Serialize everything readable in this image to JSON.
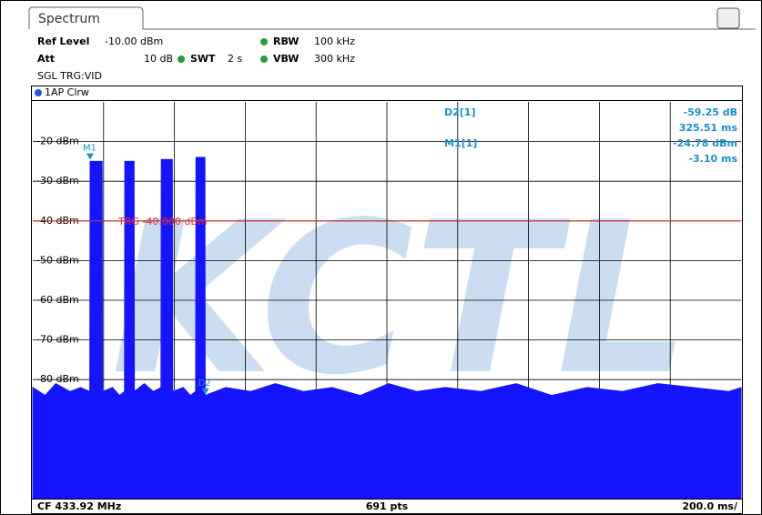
{
  "tab": "Spectrum",
  "settings": {
    "ref_level_label": "Ref Level",
    "ref_level": "-10.00 dBm",
    "rbw_label": "RBW",
    "rbw": "100 kHz",
    "att_label": "Att",
    "att": "10 dB",
    "swt_label": "SWT",
    "swt": "2 s",
    "vbw_label": "VBW",
    "vbw": "300 kHz",
    "trigger": "SGL TRG:VID"
  },
  "trace_label": "1AP Clrw",
  "watermark": "KCTL",
  "marker_table": [
    [
      "D2[1]",
      "-59.25 dB",
      "325.51 ms"
    ],
    [
      "M1[1]",
      "-24.78 dBm",
      "-3.10 ms"
    ]
  ],
  "footer": {
    "left": "CF 433.92 MHz",
    "center": "691 pts",
    "right": "200.0 ms/"
  },
  "chart_data": {
    "type": "line",
    "xlim": [
      -165,
      1835
    ],
    "ylim": [
      -110,
      -10
    ],
    "xticks": [
      35,
      235,
      435,
      635,
      835,
      1035,
      1235,
      1435,
      1635
    ],
    "yticks": [
      {
        "value": -20,
        "label": "-20 dBm"
      },
      {
        "value": -30,
        "label": "-30 dBm"
      },
      {
        "value": -40,
        "label": "-40 dBm"
      },
      {
        "value": -50,
        "label": "-50 dBm"
      },
      {
        "value": -60,
        "label": "-60 dBm"
      },
      {
        "value": -70,
        "label": "-70 dBm"
      },
      {
        "value": -80,
        "label": "-80 dBm"
      }
    ],
    "color": "#1414ff",
    "x": [
      -165,
      -130,
      -100,
      -60,
      -30,
      -4,
      -3,
      31,
      32,
      60,
      80,
      94,
      95,
      121,
      122,
      150,
      175,
      197,
      198,
      229,
      230,
      260,
      280,
      295,
      296,
      321,
      322,
      380,
      450,
      520,
      600,
      680,
      760,
      840,
      920,
      1000,
      1100,
      1200,
      1300,
      1400,
      1500,
      1600,
      1700,
      1800,
      1835
    ],
    "values": [
      -82,
      -84,
      -81,
      -83,
      -82,
      -83,
      -25,
      -25,
      -83,
      -82,
      -84,
      -83,
      -25,
      -25,
      -83,
      -81,
      -83,
      -82,
      -24.5,
      -24.5,
      -83,
      -82,
      -84,
      -83,
      -24,
      -24,
      -84,
      -82,
      -83,
      -81,
      -83,
      -82,
      -84,
      -81,
      -83,
      -82,
      -83,
      -81,
      -84,
      -82,
      -83,
      -81,
      -82,
      -83,
      -82
    ],
    "trigger": {
      "level": -40,
      "label": "TRG -40.000 dBm",
      "color": "#e03030"
    },
    "markers": [
      {
        "label": "M1",
        "x": -3.1,
        "y": -24.78
      },
      {
        "label": "D2",
        "x": 322.41,
        "y": -84.03
      }
    ]
  }
}
